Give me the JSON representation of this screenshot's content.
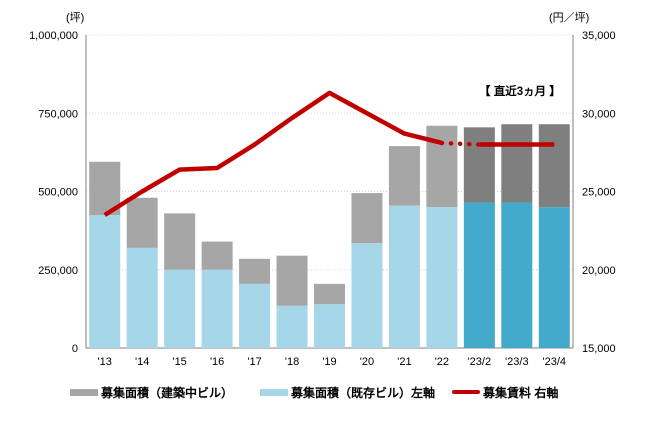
{
  "chart_data": {
    "type": "combo: stacked bar (left axis) + line (right axis)",
    "title": "",
    "categories": [
      "'13",
      "'14",
      "'15",
      "'16",
      "'17",
      "'18",
      "'19",
      "'20",
      "'21",
      "'22",
      "'23/2",
      "'23/3",
      "'23/4"
    ],
    "series": [
      {
        "name": "募集面積（既存ビル）左軸",
        "chart": "bar",
        "stack": "base",
        "axis": "left",
        "values": [
          425000,
          320000,
          250000,
          250000,
          205000,
          135000,
          140000,
          335000,
          455000,
          450000,
          465000,
          465000,
          450000
        ]
      },
      {
        "name": "募集面積（建築中ビル）",
        "chart": "bar",
        "stack": "top",
        "axis": "left",
        "values": [
          170000,
          160000,
          180000,
          90000,
          80000,
          160000,
          65000,
          160000,
          190000,
          260000,
          240000,
          250000,
          265000
        ]
      },
      {
        "name": "募集賃料 右軸",
        "chart": "line",
        "axis": "right",
        "values": [
          23500,
          25000,
          26400,
          26500,
          28000,
          29700,
          31300,
          30000,
          28700,
          28100,
          28000,
          28000,
          28000
        ]
      }
    ],
    "left_axis": {
      "unit": "(坪)",
      "min": 0,
      "max": 1000000,
      "tick_values": [
        1000000,
        750000,
        500000,
        250000,
        0
      ],
      "tick_labels": [
        "1,000,000",
        "750,000",
        "500,000",
        "250,000",
        "0"
      ]
    },
    "right_axis": {
      "unit": "(円／坪)",
      "min": 15000,
      "max": 35000,
      "tick_values": [
        35000,
        30000,
        25000,
        20000,
        15000
      ],
      "tick_labels": [
        "35,000",
        "30,000",
        "25,000",
        "20,000",
        "15,000"
      ]
    },
    "annotation": "【 直近3ヵ月 】",
    "recent_start_index": 10,
    "line_dotted_segment": [
      9,
      10
    ],
    "grid": "horizontal dotted",
    "legend_position": "bottom",
    "colors": {
      "existing": "#A5D7E8",
      "existing_recent": "#44AACB",
      "construction": "#A6A6A6",
      "construction_recent": "#7F7F7F",
      "line": "#C00000",
      "grid": "#D4D4D4",
      "axis": "#808080",
      "text": "#000000"
    }
  },
  "legend": {
    "items": [
      {
        "label": "募集面積（建築中ビル）",
        "swatch": "bar",
        "color": "#A6A6A6"
      },
      {
        "label": "募集面積（既存ビル）左軸",
        "swatch": "bar",
        "color": "#A5D7E8"
      },
      {
        "label": "募集賃料 右軸",
        "swatch": "line",
        "color": "#C00000"
      }
    ]
  }
}
